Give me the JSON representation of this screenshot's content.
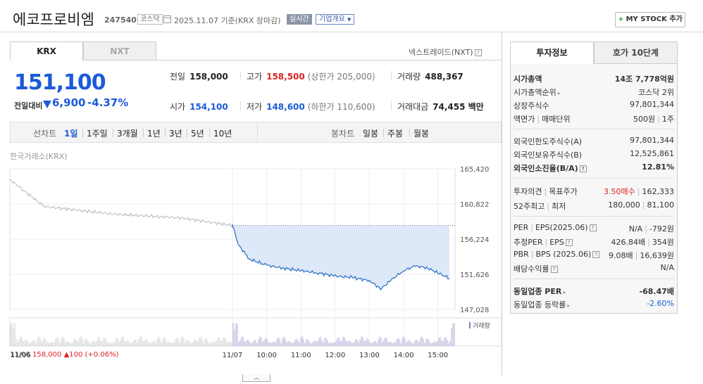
{
  "header": {
    "company": "에코프로비엠",
    "code": "247540",
    "market": "코스닥",
    "date": "2025.11.07 기준(KRX 장마감)",
    "realtime": "실시간",
    "overview": "기업개요",
    "mystock": "MY STOCK 추가"
  },
  "venue_tabs": [
    "KRX",
    "NXT"
  ],
  "nxt_link": "넥스트레이드(NXT)",
  "price": {
    "current": "151,100",
    "change_label": "전일대비",
    "change": "6,900",
    "change_pct": "-4.37%"
  },
  "stats": {
    "prev_label": "전일",
    "prev": "158,000",
    "high_label": "고가",
    "high": "158,500",
    "high_limit": "(상한가 205,000)",
    "volume_label": "거래량",
    "volume": "488,367",
    "open_label": "시가",
    "open": "154,100",
    "low_label": "저가",
    "low": "148,600",
    "low_limit": "(하한가 110,600)",
    "amount_label": "거래대금",
    "amount": "74,455 백만"
  },
  "period_bar": {
    "line_label": "선차트",
    "line_periods": [
      "1일",
      "1주일",
      "3개월",
      "1년",
      "3년",
      "5년",
      "10년"
    ],
    "candle_label": "봉차트",
    "candle_periods": [
      "일봉",
      "주봉",
      "월봉"
    ]
  },
  "chart_source": "한국거래소(KRX)",
  "volume_legend": "거래량",
  "prev_day_info": {
    "date": "11/06",
    "close": "158,000",
    "change": "▲100",
    "pct": "(+0.06%)"
  },
  "chart_data": {
    "type": "line",
    "title": "",
    "x_ticks": [
      "11/06",
      "11/07",
      "10:00",
      "11:00",
      "12:00",
      "13:00",
      "14:00",
      "15:00"
    ],
    "y_ticks": [
      "165,420",
      "160,822",
      "156,224",
      "151,626",
      "147,028"
    ],
    "ylim": [
      147028,
      165420
    ],
    "reference": 158000,
    "series": [
      {
        "x": [
          "11/06 09:00",
          "11/06 10:00",
          "11/06 12:00",
          "11/06 14:00",
          "11/06 15:30",
          "11/07 09:00",
          "11/07 09:10",
          "11/07 09:30",
          "11/07 10:00",
          "11/07 10:30",
          "11/07 11:00",
          "11/07 11:30",
          "11/07 12:00",
          "11/07 12:30",
          "11/07 13:00",
          "11/07 13:20",
          "11/07 13:40",
          "11/07 14:00",
          "11/07 14:20",
          "11/07 14:40",
          "11/07 15:00",
          "11/07 15:20"
        ],
        "values": [
          164000,
          160500,
          159500,
          159000,
          158000,
          158100,
          155500,
          153600,
          152800,
          152400,
          152100,
          151800,
          151400,
          151200,
          150800,
          149700,
          151000,
          152100,
          152700,
          152500,
          151800,
          151100
        ]
      }
    ]
  },
  "right_tabs": [
    "투자정보",
    "호가 10단계"
  ],
  "invest": {
    "mcap_label": "시가총액",
    "mcap": "14조 7,778억원",
    "mcap_rank_label": "시가총액순위",
    "mcap_rank": "코스닥 2위",
    "shares_label": "상장주식수",
    "shares": "97,801,344",
    "par_label": "액면가",
    "lot_label": "매매단위",
    "par": "500원",
    "lot": "1주",
    "foreign_limit_label": "외국인한도주식수(A)",
    "foreign_limit": "97,801,344",
    "foreign_hold_label": "외국인보유주식수(B)",
    "foreign_hold": "12,525,861",
    "foreign_ratio_label": "외국인소진율(B/A)",
    "foreign_ratio": "12.81%",
    "opinion_label": "투자의견",
    "target_label": "목표주가",
    "opinion": "3.50매수",
    "target": "162,333",
    "w52_high_label": "52주최고",
    "w52_low_label": "최저",
    "w52_high": "180,000",
    "w52_low": "81,100",
    "per_label": "PER",
    "eps_label": "EPS(2025.06)",
    "per": "N/A",
    "eps": "-792원",
    "est_per_label": "추정PER",
    "est_eps_label": "EPS",
    "est_per": "426.84배",
    "est_eps": "354원",
    "pbr_label": "PBR",
    "bps_label": "BPS (2025.06)",
    "pbr": "9.08배",
    "bps": "16,639원",
    "div_label": "배당수익률",
    "div": "N/A",
    "ind_per_label": "동일업종 PER",
    "ind_per": "-68.47배",
    "ind_rate_label": "동일업종 등락률",
    "ind_rate": "-2.60%"
  }
}
